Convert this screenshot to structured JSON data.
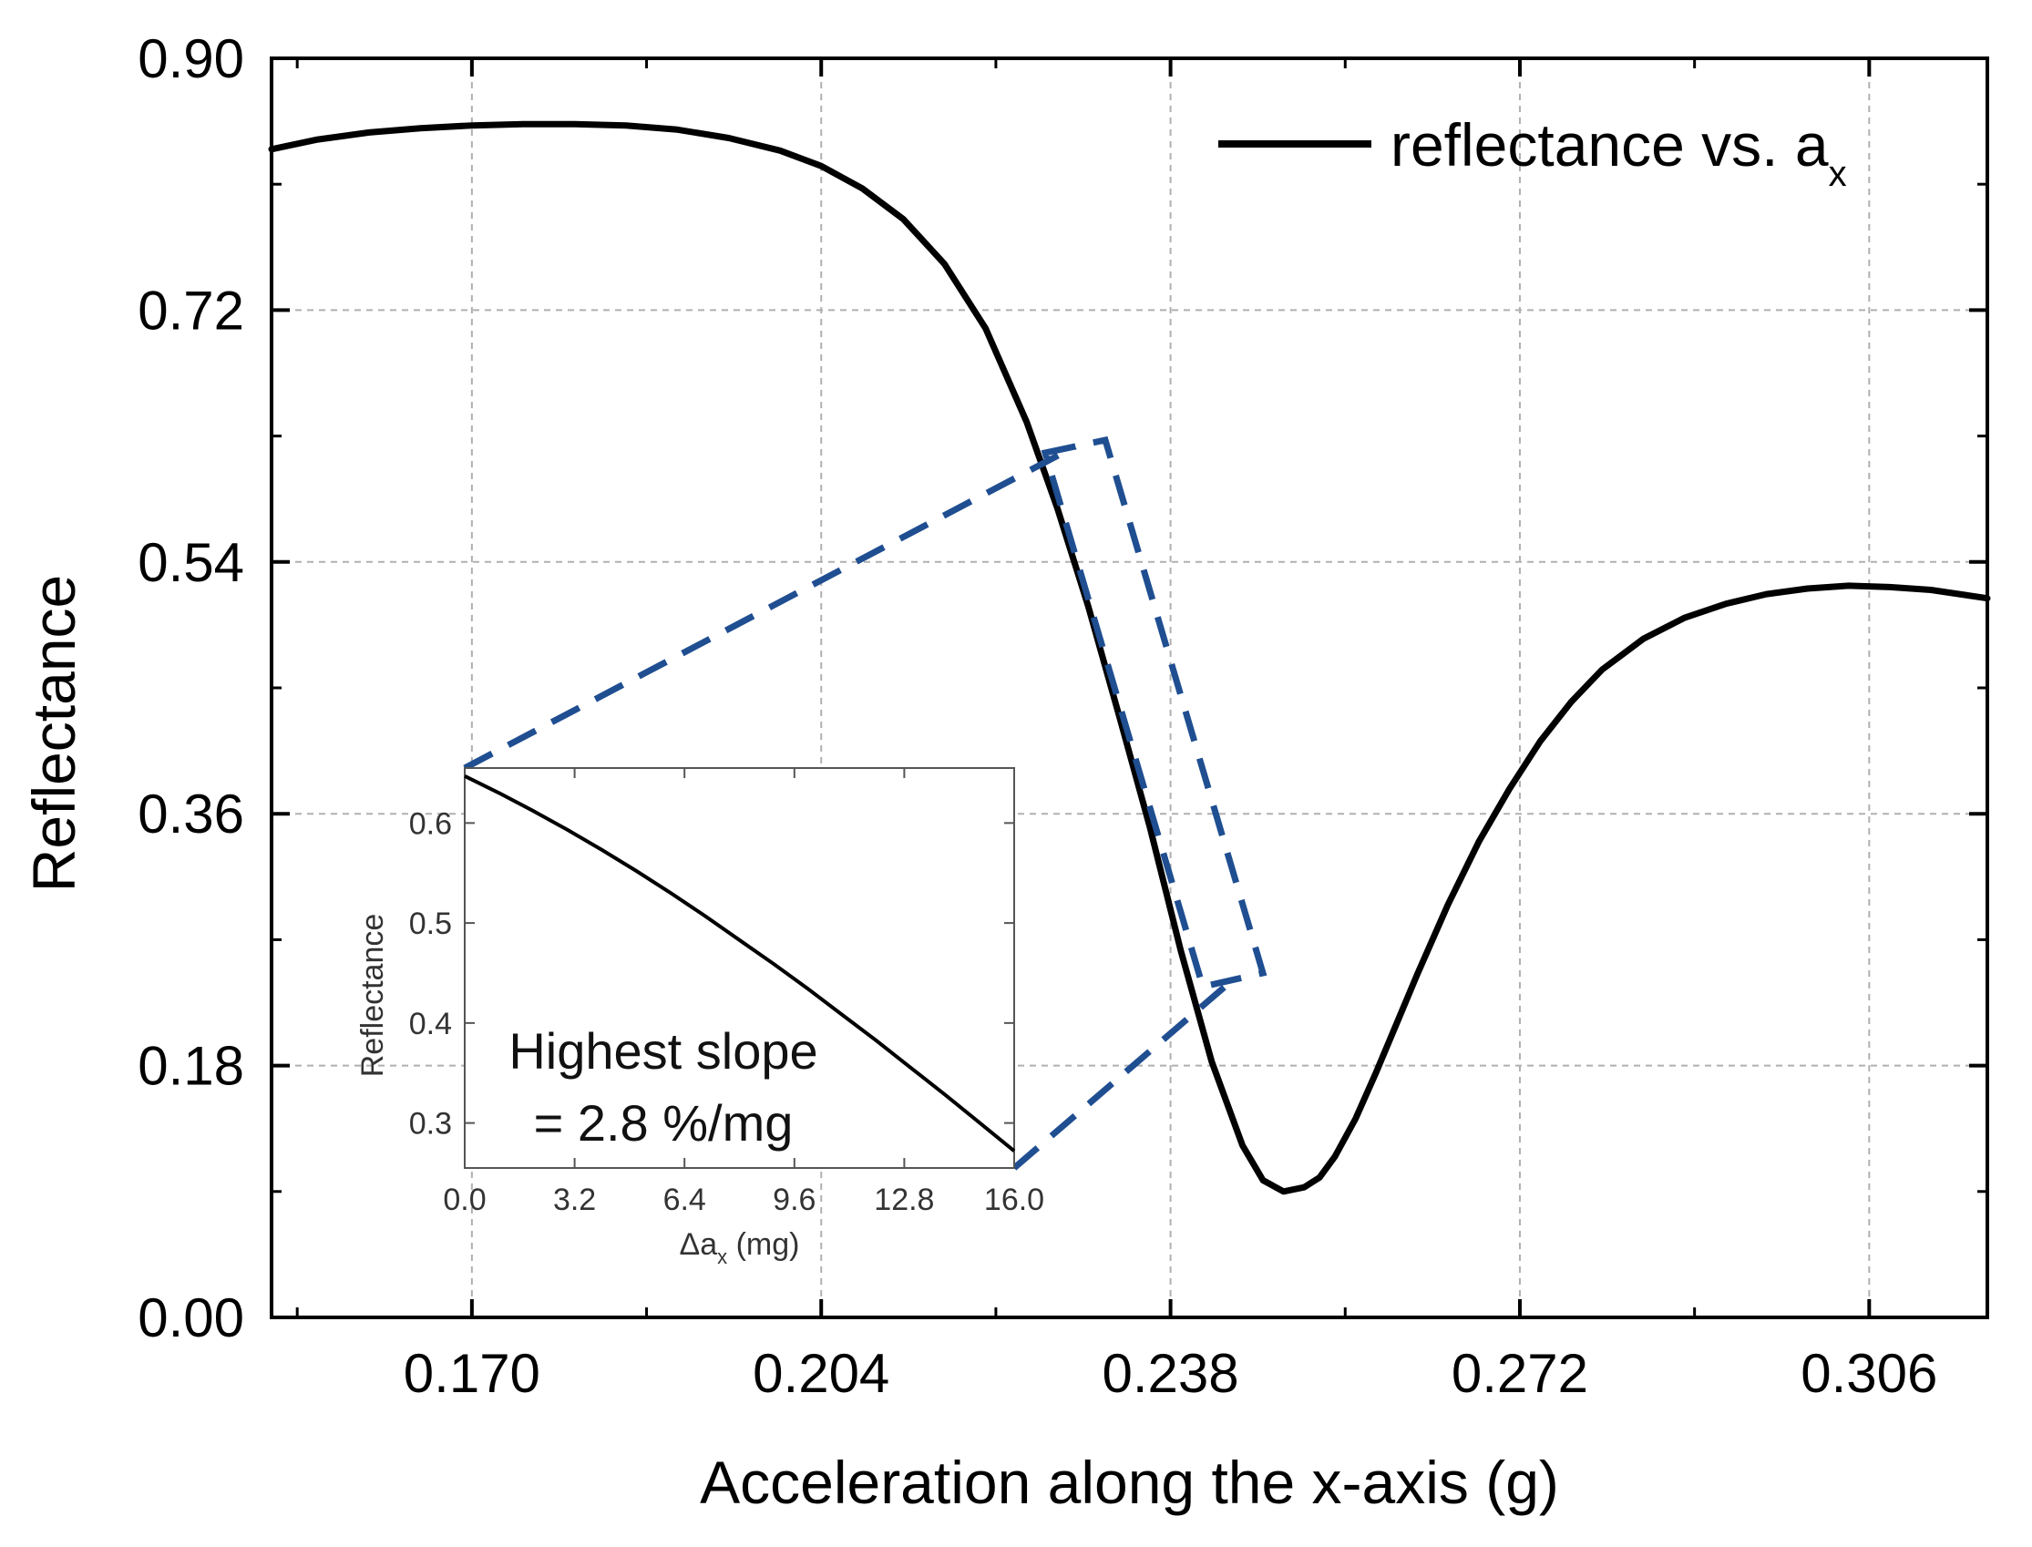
{
  "colors": {
    "curve": "#000000",
    "grid": "#b0b0b0",
    "zoom": "#1f4e91",
    "axis": "#000000"
  },
  "chart_data": [
    {
      "id": "main",
      "type": "line",
      "title": "",
      "xlabel": "Acceleration along the x-axis (g)",
      "ylabel": "Reflectance",
      "xlim": [
        0.1505,
        0.3175
      ],
      "ylim": [
        0.0,
        0.9
      ],
      "xticks": [
        0.17,
        0.204,
        0.238,
        0.272,
        0.306
      ],
      "xtick_labels": [
        "0.170",
        "0.204",
        "0.238",
        "0.272",
        "0.306"
      ],
      "yticks": [
        0.0,
        0.18,
        0.36,
        0.54,
        0.72,
        0.9
      ],
      "ytick_labels": [
        "0.00",
        "0.18",
        "0.36",
        "0.54",
        "0.72",
        "0.90"
      ],
      "grid": true,
      "legend": {
        "position": "top-right",
        "label": "reflectance vs. a",
        "label_sub": "x"
      },
      "series": [
        {
          "name": "reflectance vs. ax",
          "x": [
            0.1505,
            0.155,
            0.16,
            0.165,
            0.17,
            0.175,
            0.18,
            0.185,
            0.19,
            0.195,
            0.2,
            0.204,
            0.208,
            0.212,
            0.216,
            0.22,
            0.224,
            0.227,
            0.23,
            0.233,
            0.236,
            0.239,
            0.242,
            0.245,
            0.247,
            0.249,
            0.251,
            0.2525,
            0.254,
            0.256,
            0.258,
            0.26,
            0.262,
            0.265,
            0.268,
            0.271,
            0.274,
            0.277,
            0.28,
            0.284,
            0.288,
            0.292,
            0.296,
            0.3,
            0.304,
            0.308,
            0.312,
            0.3175
          ],
          "y": [
            0.835,
            0.842,
            0.847,
            0.85,
            0.852,
            0.853,
            0.853,
            0.852,
            0.849,
            0.843,
            0.834,
            0.823,
            0.807,
            0.785,
            0.753,
            0.707,
            0.64,
            0.578,
            0.508,
            0.43,
            0.35,
            0.262,
            0.183,
            0.123,
            0.098,
            0.09,
            0.093,
            0.1,
            0.115,
            0.142,
            0.175,
            0.21,
            0.245,
            0.295,
            0.34,
            0.378,
            0.412,
            0.44,
            0.463,
            0.485,
            0.5,
            0.51,
            0.517,
            0.521,
            0.523,
            0.522,
            0.52,
            0.514
          ]
        }
      ]
    },
    {
      "id": "inset",
      "type": "line",
      "title": "",
      "xlabel": "Δa",
      "xlabel_sub": "x",
      "xlabel_suffix": " (mg)",
      "ylabel": "Reflectance",
      "xlim": [
        0.0,
        16.0
      ],
      "ylim": [
        0.255,
        0.655
      ],
      "xticks": [
        0.0,
        3.2,
        6.4,
        9.6,
        12.8,
        16.0
      ],
      "xtick_labels": [
        "0.0",
        "3.2",
        "6.4",
        "9.6",
        "12.8",
        "16.0"
      ],
      "yticks": [
        0.3,
        0.4,
        0.5,
        0.6
      ],
      "ytick_labels": [
        "0.3",
        "0.4",
        "0.5",
        "0.6"
      ],
      "grid": false,
      "annotation": {
        "line1": "Highest slope",
        "line2": "= 2.8 %/mg"
      },
      "series": [
        {
          "name": "reflectance",
          "x": [
            0,
            1,
            2,
            3,
            4,
            5,
            6,
            7,
            8,
            9,
            10,
            11,
            12,
            13,
            14,
            15,
            16
          ],
          "y": [
            0.647,
            0.63,
            0.612,
            0.593,
            0.573,
            0.552,
            0.53,
            0.507,
            0.483,
            0.459,
            0.434,
            0.408,
            0.382,
            0.355,
            0.328,
            0.3,
            0.272
          ]
        }
      ]
    }
  ]
}
